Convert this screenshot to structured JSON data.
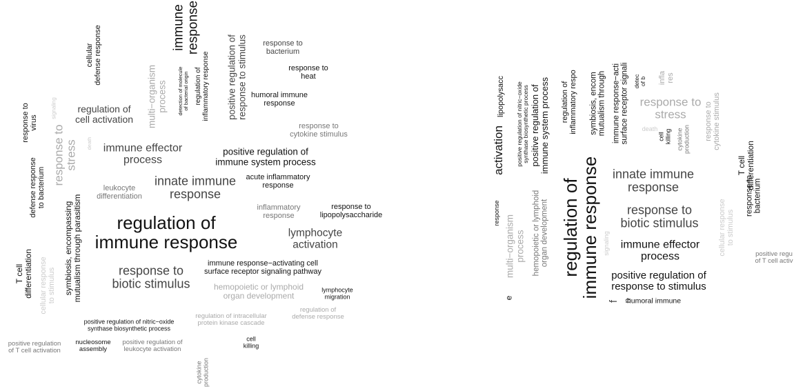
{
  "colors": {
    "dark": "#111111",
    "mid": "#444444",
    "gray": "#777777",
    "light": "#aaaaaa",
    "faint": "#cccccc"
  },
  "left_cloud": {
    "words": [
      "immune\nresponse",
      "cellular\ndefense response",
      "detection of molecule\nof bacterial origin",
      "regulation of\ninflammatory response",
      "positive regulation of\nresponse to stimulus",
      "multi−organism\nprocess",
      "response to\nbacterium",
      "response to\nheat",
      "humoral immune\nresponse",
      "response to\ncytokine stimulus",
      "regulation of\ncell activation",
      "response to\nvirus",
      "signaling",
      "response to\nstress",
      "death",
      "immune effector\nprocess",
      "positive regulation of\nimmune system process",
      "acute inflammatory\nresponse",
      "defense response\nto bacterium",
      "leukocyte\ndifferentiation",
      "innate immune\nresponse",
      "inflammatory\nresponse",
      "response to\nlipopolysaccharide",
      "symbiosis, encompassing\nmutualism through parasitism",
      "regulation of\nimmune response",
      "lymphocyte\nactivation",
      "immune response−activating cell\nsurface receptor signaling pathway",
      "response to\nbiotic stimulus",
      "T cell\ndifferentiation",
      "cellular response\nto stimulus",
      "hemopoietic or lymphoid\norgan development",
      "lymphocyte\nmigration",
      "regulation of\ndefense response",
      "regulation of intracellular\nprotein kinase cascade",
      "positive regulation of nitric−oxide\nsynthase biosynthetic process",
      "cell\nkilling",
      "positive regulation\nof T cell activation",
      "nucleosome\nassembly",
      "positive regulation of\nleukocyte activation",
      "cytokine\nproduction"
    ]
  },
  "right_cloud": {
    "words": [
      "activation",
      "lipopolysacc",
      "positive regulation of nitric−oxide\nsynthase biosynthetic process",
      "positive regulation of\nimmune system process",
      "regulation of\ninflammatory respo",
      "symbiosis, encom\nmutualism through",
      "immune response−acti\nsurface receptor signali",
      "detec\nof b",
      "infla\nres",
      "response to\nstress",
      "death",
      "cell\nkilling",
      "cytokine\nproduction",
      "response to\ncytokine stimulus",
      "T cell\ndifferentiation",
      "response to\nbacterium",
      "innate immune\nresponse",
      "regulation of\nimmune response",
      "response to\nbiotic stimulus",
      "response",
      "multi−organism\nprocess",
      "hemopoietic or lymphoid\norgan development",
      "signaling",
      "cellular response\nto stimulus",
      "immune effector\nprocess",
      "positive regulation of\nresponse to stimulus",
      "humoral immune",
      "positive regu\nof T cell activ",
      "e",
      "f",
      "n"
    ]
  }
}
